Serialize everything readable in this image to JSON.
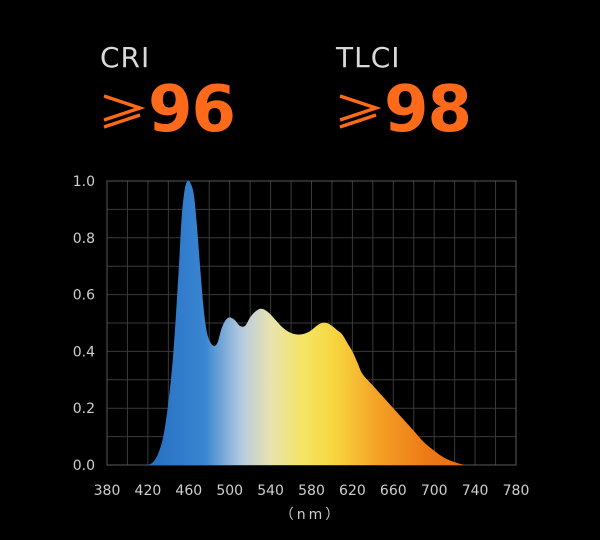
{
  "metrics": {
    "cri": {
      "label": "CRI",
      "symbol": "≥",
      "value": "96",
      "color": "#ff6a1a"
    },
    "tlci": {
      "label": "TLCI",
      "symbol": "≥",
      "value": "98",
      "color": "#ff6a1a"
    }
  },
  "chart_data": {
    "type": "area",
    "title": "",
    "xlabel": "（nm）",
    "ylabel": "",
    "xlim": [
      380,
      780
    ],
    "ylim": [
      0,
      1.0
    ],
    "xticks": [
      380,
      420,
      460,
      500,
      540,
      580,
      620,
      660,
      700,
      740,
      780
    ],
    "yticks": [
      "1.0",
      "0.8",
      "0.6",
      "0.4",
      "0.2",
      "0.0"
    ],
    "grid": true,
    "fill": "spectral-gradient",
    "series": [
      {
        "x": [
          420,
          425,
          430,
          435,
          440,
          445,
          450,
          453,
          456,
          459,
          462,
          465,
          468,
          471,
          474,
          477,
          480,
          484,
          488,
          492,
          496,
          500,
          505,
          510,
          515,
          520,
          525,
          530,
          535,
          540,
          545,
          550,
          555,
          560,
          565,
          570,
          575,
          580,
          585,
          590,
          595,
          600,
          605,
          610,
          615,
          620,
          625,
          630,
          640,
          650,
          660,
          670,
          680,
          690,
          700,
          710,
          720,
          730,
          740,
          750,
          760,
          770
        ],
        "values": [
          0.0,
          0.01,
          0.04,
          0.1,
          0.22,
          0.4,
          0.68,
          0.87,
          0.97,
          1.0,
          0.99,
          0.95,
          0.84,
          0.7,
          0.57,
          0.48,
          0.44,
          0.42,
          0.43,
          0.48,
          0.51,
          0.52,
          0.51,
          0.49,
          0.49,
          0.52,
          0.54,
          0.55,
          0.545,
          0.53,
          0.51,
          0.49,
          0.475,
          0.465,
          0.46,
          0.46,
          0.465,
          0.475,
          0.49,
          0.5,
          0.5,
          0.49,
          0.475,
          0.46,
          0.43,
          0.4,
          0.36,
          0.32,
          0.28,
          0.24,
          0.2,
          0.16,
          0.12,
          0.08,
          0.05,
          0.025,
          0.01,
          0.0,
          0.0,
          0.0,
          0.0,
          0.0
        ]
      }
    ]
  }
}
